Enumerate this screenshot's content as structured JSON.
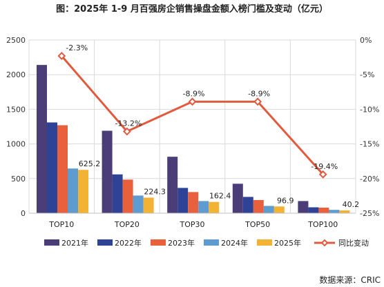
{
  "chart_data": {
    "type": "bar",
    "title": "图：2025年 1-9 月百强房企销售操盘金额入榜门槛及变动（亿元）",
    "source": "数据来源：CRIC",
    "categories": [
      "TOP10",
      "TOP20",
      "TOP30",
      "TOP50",
      "TOP100"
    ],
    "series": [
      {
        "name": "2021年",
        "color": "#4b3e78",
        "values": [
          2140,
          1190,
          815,
          425,
          175
        ]
      },
      {
        "name": "2022年",
        "color": "#2e4395",
        "values": [
          1310,
          560,
          365,
          235,
          85
        ]
      },
      {
        "name": "2023年",
        "color": "#e8603c",
        "values": [
          1270,
          485,
          305,
          190,
          80
        ]
      },
      {
        "name": "2024年",
        "color": "#5e9bd0",
        "values": [
          645,
          255,
          175,
          105,
          48
        ]
      },
      {
        "name": "2025年",
        "color": "#f2b233",
        "values": [
          625.2,
          224.3,
          162.4,
          96.9,
          40.2
        ]
      }
    ],
    "line_series": {
      "name": "同比变动",
      "color": "#e05a3f",
      "values": [
        -2.3,
        -13.2,
        -8.9,
        -8.9,
        -19.4
      ],
      "labels": [
        "-2.3%",
        "-13.2%",
        "-8.9%",
        "-8.9%",
        "-19.4%"
      ]
    },
    "bar_labels": [
      "625.2",
      "224.3",
      "162.4",
      "96.9",
      "40.2"
    ],
    "ylim": [
      0,
      2500
    ],
    "yticks": [
      "0",
      "500",
      "1000",
      "1500",
      "2000",
      "2500"
    ],
    "y2lim": [
      -25,
      0
    ],
    "y2ticks": [
      "0%",
      "-5%",
      "-10%",
      "-15%",
      "-20%",
      "-25%"
    ],
    "grid": true,
    "legend_position": "bottom"
  }
}
